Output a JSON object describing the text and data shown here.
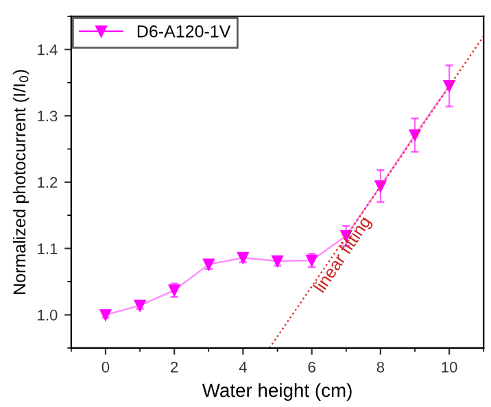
{
  "chart_data": {
    "type": "line",
    "xlabel": "Water height (cm)",
    "ylabel": "Normalized photocurrent (I/I$_{0}$)",
    "xlim": [
      -1,
      11
    ],
    "ylim": [
      0.95,
      1.45
    ],
    "xticks": [
      0,
      2,
      4,
      6,
      8,
      10
    ],
    "yticks": [
      {
        "value": 1.0,
        "label": "1.0"
      },
      {
        "value": 1.1,
        "label": "1.1"
      },
      {
        "value": 1.2,
        "label": "1.2"
      },
      {
        "value": 1.3,
        "label": "1.3"
      },
      {
        "value": 1.4,
        "label": "1.4"
      }
    ],
    "legend": "top left",
    "grid": false,
    "marker": "triangle",
    "series": [
      {
        "name": "D6-A120-1V",
        "color": "#ff00ff",
        "x": [
          0,
          1,
          2,
          3,
          4,
          5,
          6,
          7,
          8,
          9,
          10
        ],
        "values": [
          1.0,
          1.014,
          1.037,
          1.076,
          1.086,
          1.081,
          1.082,
          1.119,
          1.194,
          1.271,
          1.345
        ],
        "errors": [
          0.004,
          0.005,
          0.01,
          0.007,
          0.007,
          0.007,
          0.01,
          0.015,
          0.024,
          0.025,
          0.031
        ],
        "line_style": "solid"
      },
      {
        "type": "line",
        "color": "#e03030",
        "x": [
          4.77,
          11
        ],
        "values": [
          0.95,
          1.42
        ],
        "line_style": "dotted",
        "marker": "none"
      }
    ],
    "annotations": [
      "linear fitting"
    ]
  }
}
